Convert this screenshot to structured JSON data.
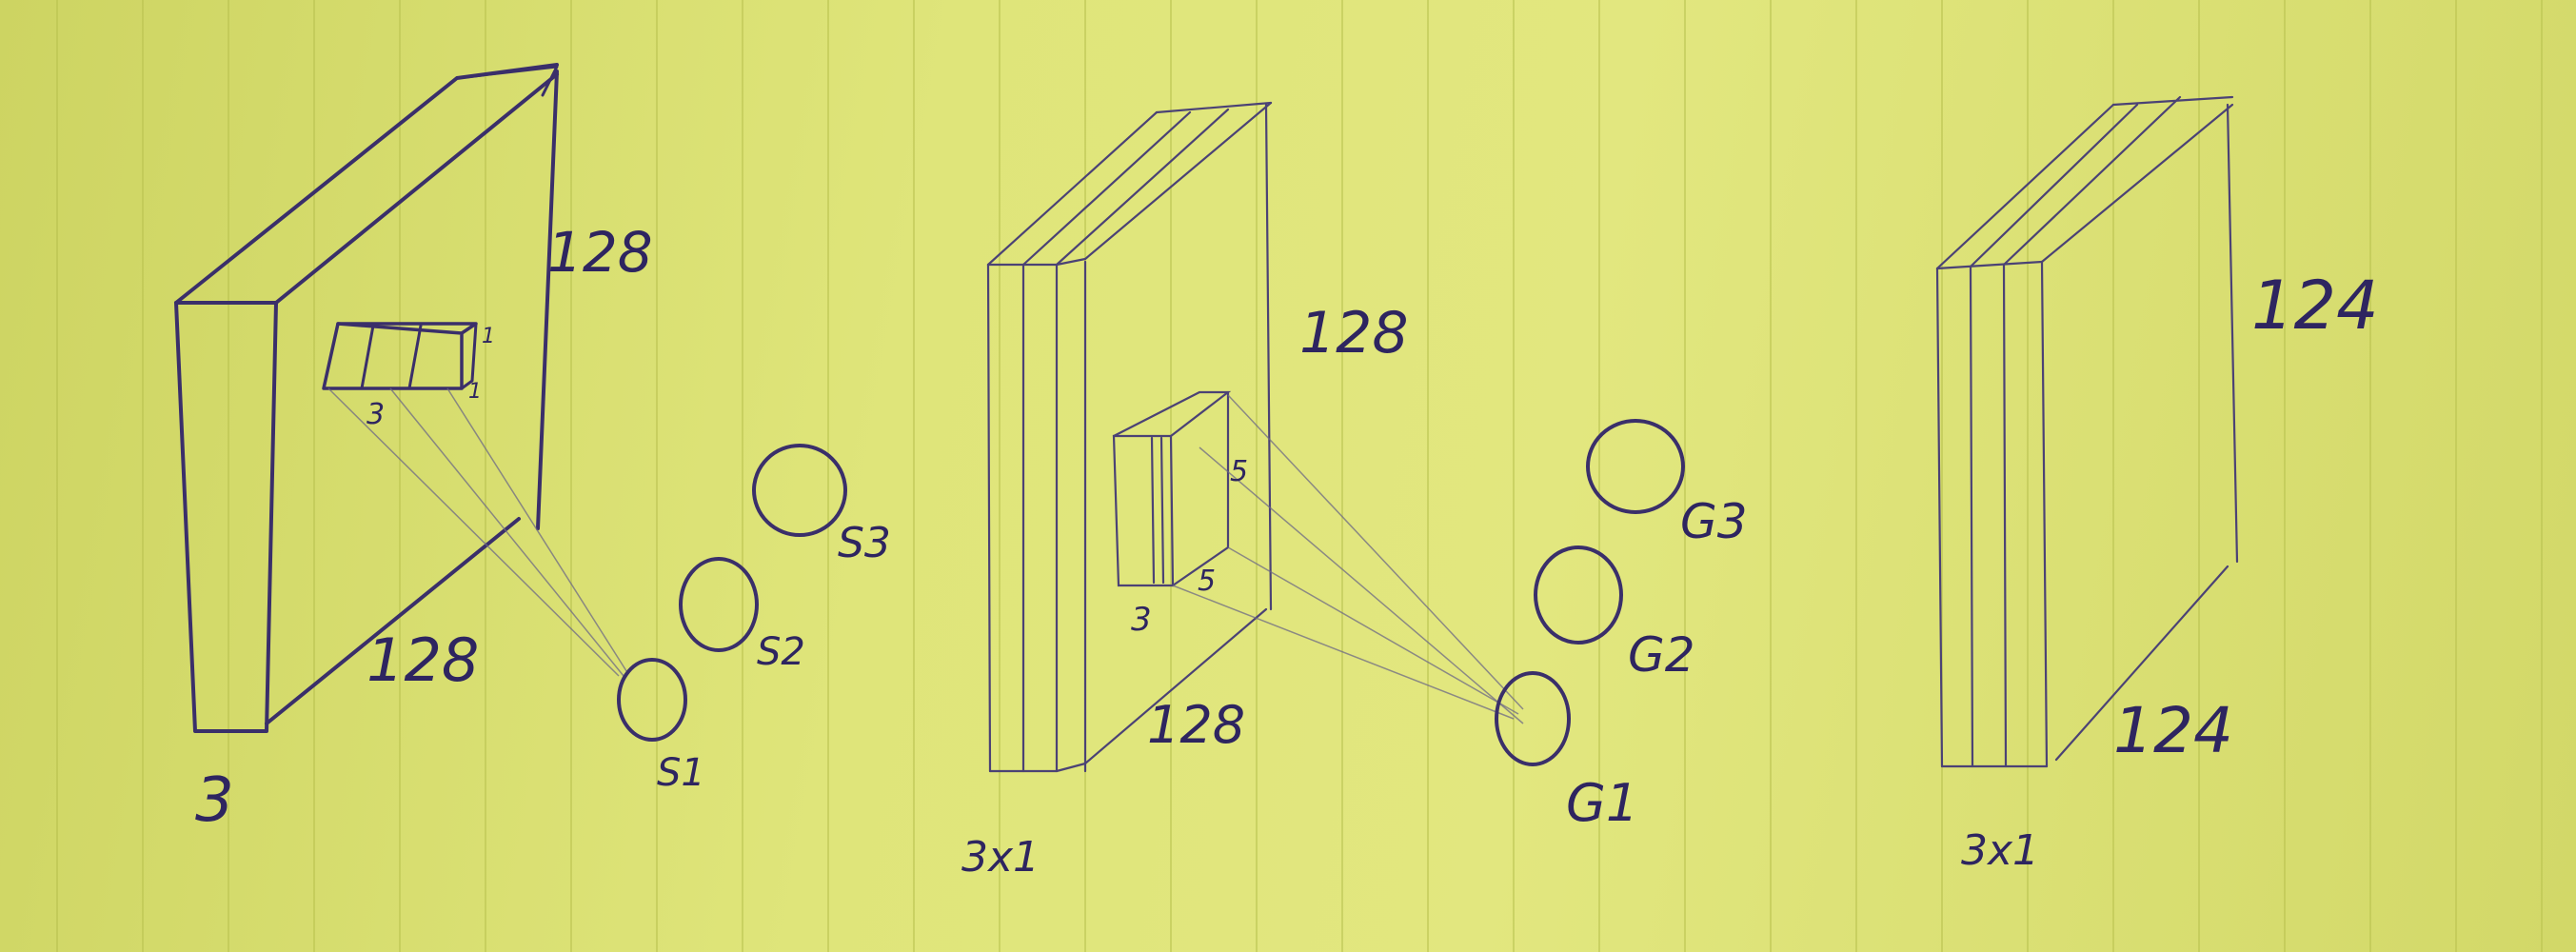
{
  "volume1": {
    "depth": "3",
    "height": "128",
    "width": "128",
    "filter_width": "3",
    "filter_h": "1",
    "filter_d": "1"
  },
  "outputs_s": [
    "S3",
    "S2",
    "S1"
  ],
  "volume2": {
    "depth": "3x1",
    "height": "128",
    "width": "128",
    "filter_depth": "3",
    "filter_h": "5",
    "filter_w": "5"
  },
  "outputs_g": [
    "G3",
    "G2",
    "G1"
  ],
  "volume3": {
    "depth": "3x1",
    "height": "124",
    "width": "124"
  }
}
